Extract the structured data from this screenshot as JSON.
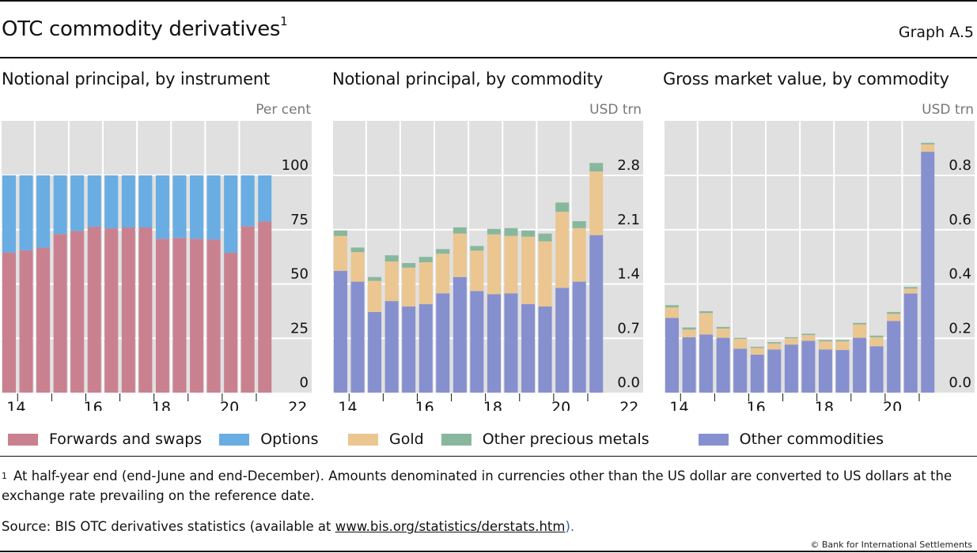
{
  "header": {
    "title": "OTC commodity derivatives",
    "title_footnote_mark": "1",
    "graph_id": "Graph A.5"
  },
  "colors": {
    "forwards_swaps": "#c98190",
    "options": "#69ade3",
    "gold": "#ebc690",
    "other_precious_metals": "#88b79e",
    "other_commodities": "#8690cf",
    "plot_bg": "#e0e0e0",
    "grid": "#ffffff"
  },
  "legend": {
    "forwards_swaps": "Forwards and swaps",
    "options": "Options",
    "gold": "Gold",
    "other_precious_metals": "Other precious metals",
    "other_commodities": "Other commodities"
  },
  "footnote": {
    "mark": "1",
    "text": "At half-year end (end-June and end-December). Amounts denominated in currencies other than the US dollar are converted to US dollars at the exchange rate prevailing on the reference date."
  },
  "source": {
    "prefix": "Source: BIS OTC derivatives statistics (available at ",
    "link_text": "www.bis.org/statistics/derstats.htm",
    "suffix": ")."
  },
  "copyright": "© Bank for International Settlements",
  "chart_data": [
    {
      "type": "bar",
      "stacked": true,
      "title": "Notional principal, by instrument",
      "unit_label": "Per cent",
      "ylim": [
        0,
        125
      ],
      "yticks": [
        0,
        25,
        50,
        75,
        100
      ],
      "ytick_labels": [
        "0",
        "25",
        "50",
        "75",
        "100"
      ],
      "xtick_labels": [
        "14",
        "16",
        "18",
        "20",
        "22"
      ],
      "periods": [
        "H1 2014",
        "H2 2014",
        "H1 2015",
        "H2 2015",
        "H1 2016",
        "H2 2016",
        "H1 2017",
        "H2 2017",
        "H1 2018",
        "H2 2018",
        "H1 2019",
        "H2 2019",
        "H1 2020",
        "H2 2020",
        "H1 2021",
        "H2 2021"
      ],
      "grid": true,
      "series": [
        {
          "name": "Forwards and swaps",
          "color_key": "forwards_swaps",
          "values": [
            64.5,
            65.5,
            66.7,
            73.0,
            74.4,
            76.4,
            75.6,
            76.0,
            76.0,
            70.8,
            71.2,
            70.8,
            70.5,
            64.4,
            76.6,
            78.8
          ]
        },
        {
          "name": "Options",
          "color_key": "options",
          "values": [
            35.5,
            34.5,
            33.3,
            27.0,
            25.6,
            23.6,
            24.4,
            24.0,
            24.0,
            29.2,
            28.8,
            29.2,
            29.5,
            35.6,
            23.4,
            21.2
          ]
        }
      ]
    },
    {
      "type": "bar",
      "stacked": true,
      "title": "Notional principal, by commodity",
      "unit_label": "USD trn",
      "ylim": [
        0,
        3.5
      ],
      "yticks": [
        0,
        0.7,
        1.4,
        2.1,
        2.8
      ],
      "ytick_labels": [
        "0.0",
        "0.7",
        "1.4",
        "2.1",
        "2.8"
      ],
      "xtick_labels": [
        "14",
        "16",
        "18",
        "20",
        "22"
      ],
      "periods": [
        "H1 2014",
        "H2 2014",
        "H1 2015",
        "H2 2015",
        "H1 2016",
        "H2 2016",
        "H1 2017",
        "H2 2017",
        "H1 2018",
        "H2 2018",
        "H1 2019",
        "H2 2019",
        "H1 2020",
        "H2 2020",
        "H1 2021",
        "H2 2021"
      ],
      "grid": true,
      "series": [
        {
          "name": "Other commodities",
          "color_key": "other_commodities",
          "values": [
            1.57,
            1.43,
            1.04,
            1.18,
            1.11,
            1.14,
            1.28,
            1.49,
            1.31,
            1.27,
            1.28,
            1.14,
            1.11,
            1.35,
            1.43,
            2.03
          ]
        },
        {
          "name": "Gold",
          "color_key": "gold",
          "values": [
            0.45,
            0.38,
            0.4,
            0.51,
            0.5,
            0.54,
            0.51,
            0.56,
            0.52,
            0.77,
            0.74,
            0.87,
            0.84,
            0.98,
            0.69,
            0.82
          ]
        },
        {
          "name": "Other precious metals",
          "color_key": "other_precious_metals",
          "values": [
            0.07,
            0.06,
            0.05,
            0.08,
            0.06,
            0.07,
            0.06,
            0.08,
            0.06,
            0.07,
            0.1,
            0.08,
            0.1,
            0.12,
            0.09,
            0.11
          ]
        }
      ]
    },
    {
      "type": "bar",
      "stacked": true,
      "title": "Gross market value, by commodity",
      "unit_label": "USD trn",
      "ylim": [
        0,
        1.0
      ],
      "yticks": [
        0,
        0.2,
        0.4,
        0.6,
        0.8
      ],
      "ytick_labels": [
        "0.0",
        "0.2",
        "0.4",
        "0.6",
        "0.8"
      ],
      "xtick_labels": [
        "14",
        "16",
        "18",
        "20"
      ],
      "periods": [
        "H1 2014",
        "H2 2014",
        "H1 2015",
        "H2 2015",
        "H1 2016",
        "H2 2016",
        "H1 2017",
        "H2 2017",
        "H1 2018",
        "H2 2018",
        "H1 2019",
        "H2 2019",
        "H1 2020",
        "H2 2020",
        "H1 2021",
        "H2 2021"
      ],
      "grid": true,
      "series": [
        {
          "name": "Other commodities",
          "color_key": "other_commodities",
          "values": [
            0.275,
            0.204,
            0.214,
            0.202,
            0.162,
            0.14,
            0.159,
            0.177,
            0.191,
            0.159,
            0.157,
            0.202,
            0.171,
            0.264,
            0.365,
            0.887
          ]
        },
        {
          "name": "Gold",
          "color_key": "gold",
          "values": [
            0.039,
            0.028,
            0.079,
            0.034,
            0.036,
            0.025,
            0.022,
            0.023,
            0.021,
            0.03,
            0.032,
            0.049,
            0.033,
            0.026,
            0.018,
            0.027
          ]
        },
        {
          "name": "Other precious metals",
          "color_key": "other_precious_metals",
          "values": [
            0.008,
            0.008,
            0.007,
            0.006,
            0.004,
            0.004,
            0.005,
            0.004,
            0.005,
            0.005,
            0.005,
            0.006,
            0.006,
            0.007,
            0.006,
            0.006
          ]
        }
      ]
    }
  ]
}
